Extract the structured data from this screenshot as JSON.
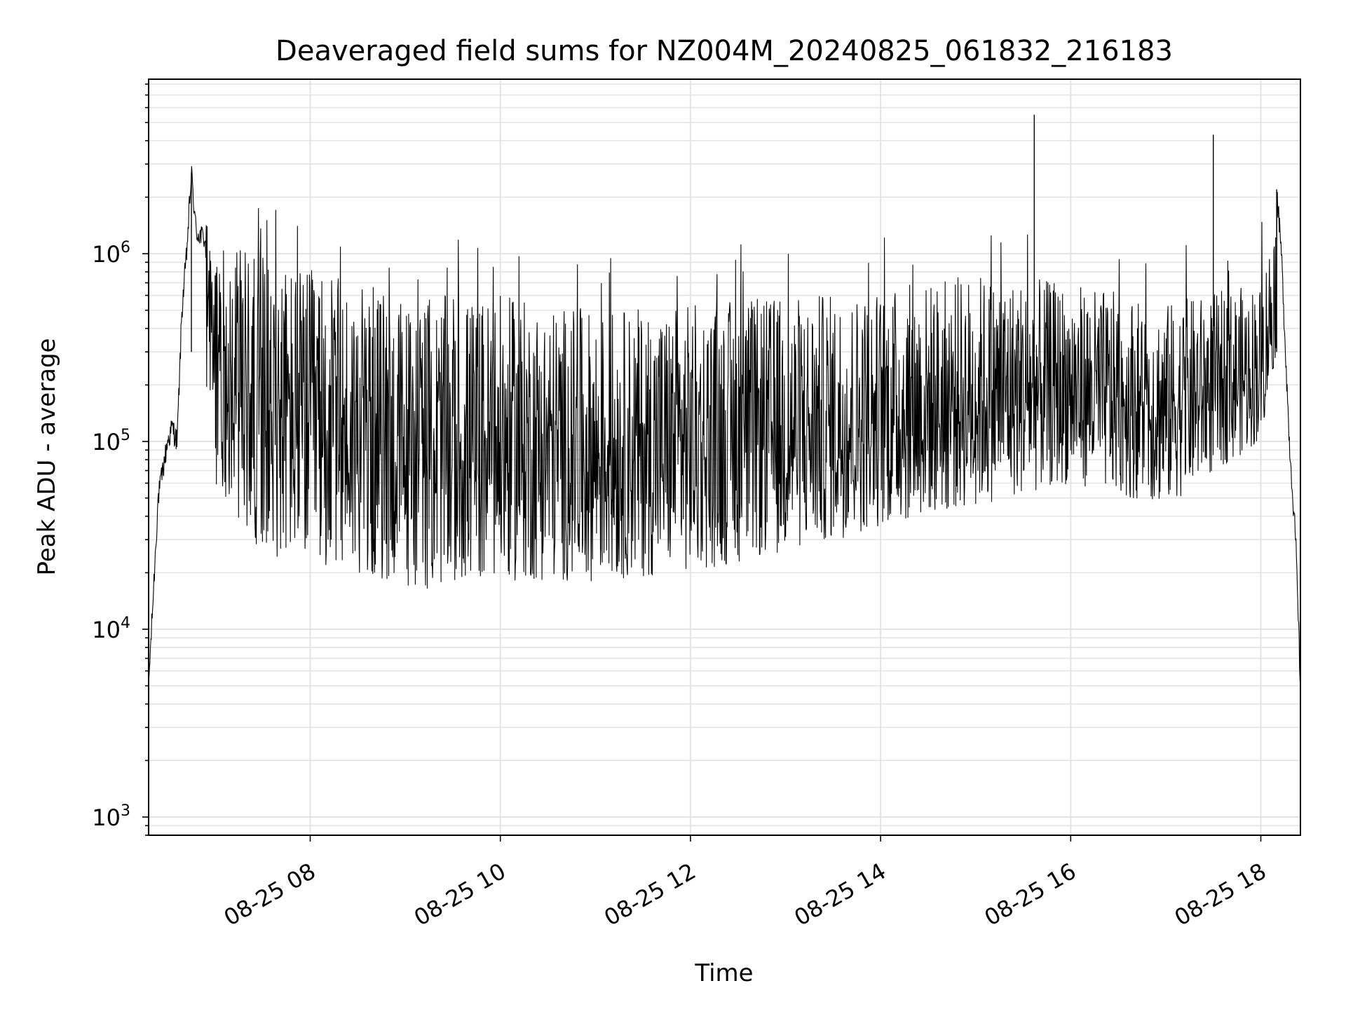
{
  "chart_data": {
    "type": "line",
    "title": "Deaveraged field sums for NZ004M_20240825_061832_216183",
    "xlabel": "Time",
    "ylabel": "Peak ADU - average",
    "yscale": "log",
    "ylim": [
      800,
      8500000
    ],
    "xlim": [
      "2024-08-25 06:18",
      "2024-08-25 18:25"
    ],
    "x_ticks": [
      "08-25 08",
      "08-25 10",
      "08-25 12",
      "08-25 14",
      "08-25 16",
      "08-25 18"
    ],
    "y_ticks": [
      {
        "base": "10",
        "exp": "3"
      },
      {
        "base": "10",
        "exp": "4"
      },
      {
        "base": "10",
        "exp": "5"
      },
      {
        "base": "10",
        "exp": "6"
      }
    ],
    "grid": true,
    "line_color": "#000000",
    "series": [
      {
        "x": [
          "2024-08-25 06:18",
          "2024-08-25 06:24",
          "2024-08-25 06:30",
          "2024-08-25 06:33",
          "2024-08-25 06:36",
          "2024-08-25 06:39",
          "2024-08-25 06:42",
          "2024-08-25 06:45",
          "2024-08-25 06:48",
          "2024-08-25 06:54",
          "2024-08-25 07:00",
          "2024-08-25 07:15",
          "2024-08-25 07:30",
          "2024-08-25 08:00",
          "2024-08-25 08:30",
          "2024-08-25 09:00",
          "2024-08-25 10:00",
          "2024-08-25 11:00",
          "2024-08-25 11:40",
          "2024-08-25 12:00",
          "2024-08-25 13:00",
          "2024-08-25 14:00",
          "2024-08-25 14:30",
          "2024-08-25 15:00",
          "2024-08-25 15:37",
          "2024-08-25 15:50",
          "2024-08-25 16:00",
          "2024-08-25 16:40",
          "2024-08-25 17:00",
          "2024-08-25 17:30",
          "2024-08-25 17:45",
          "2024-08-25 18:00",
          "2024-08-25 18:05",
          "2024-08-25 18:10",
          "2024-08-25 18:13",
          "2024-08-25 18:18",
          "2024-08-25 18:22",
          "2024-08-25 18:25"
        ],
        "y": [
          5000,
          50000,
          100000,
          120000,
          100000,
          500000,
          1000000,
          2700000,
          1300000,
          1200000,
          1000000,
          600000,
          300000,
          150000,
          100000,
          80000,
          70000,
          60000,
          50000,
          60000,
          80000,
          110000,
          130000,
          180000,
          5500000,
          200000,
          250000,
          200000,
          150000,
          4300000,
          250000,
          400000,
          600000,
          2200000,
          1000000,
          100000,
          30000,
          5000
        ]
      }
    ],
    "band_lower": [
      {
        "x": "2024-08-25 06:54",
        "y": 150000
      },
      {
        "x": "2024-08-25 07:00",
        "y": 60000
      },
      {
        "x": "2024-08-25 07:30",
        "y": 25000
      },
      {
        "x": "2024-08-25 08:30",
        "y": 20000
      },
      {
        "x": "2024-08-25 09:00",
        "y": 16000
      },
      {
        "x": "2024-08-25 10:00",
        "y": 18000
      },
      {
        "x": "2024-08-25 11:00",
        "y": 18000
      },
      {
        "x": "2024-08-25 12:00",
        "y": 20000
      },
      {
        "x": "2024-08-25 13:00",
        "y": 25000
      },
      {
        "x": "2024-08-25 14:00",
        "y": 35000
      },
      {
        "x": "2024-08-25 15:00",
        "y": 45000
      },
      {
        "x": "2024-08-25 16:00",
        "y": 60000
      },
      {
        "x": "2024-08-25 17:00",
        "y": 45000
      },
      {
        "x": "2024-08-25 18:00",
        "y": 100000
      },
      {
        "x": "2024-08-25 18:10",
        "y": 300000
      }
    ],
    "band_upper": [
      {
        "x": "2024-08-25 06:54",
        "y": 1500000
      },
      {
        "x": "2024-08-25 07:00",
        "y": 1200000
      },
      {
        "x": "2024-08-25 07:30",
        "y": 1000000
      },
      {
        "x": "2024-08-25 08:30",
        "y": 700000
      },
      {
        "x": "2024-08-25 09:00",
        "y": 600000
      },
      {
        "x": "2024-08-25 10:00",
        "y": 600000
      },
      {
        "x": "2024-08-25 11:00",
        "y": 500000
      },
      {
        "x": "2024-08-25 12:00",
        "y": 550000
      },
      {
        "x": "2024-08-25 13:00",
        "y": 600000
      },
      {
        "x": "2024-08-25 14:00",
        "y": 650000
      },
      {
        "x": "2024-08-25 15:00",
        "y": 800000
      },
      {
        "x": "2024-08-25 16:00",
        "y": 700000
      },
      {
        "x": "2024-08-25 17:00",
        "y": 550000
      },
      {
        "x": "2024-08-25 18:00",
        "y": 700000
      },
      {
        "x": "2024-08-25 18:10",
        "y": 1800000
      }
    ]
  }
}
